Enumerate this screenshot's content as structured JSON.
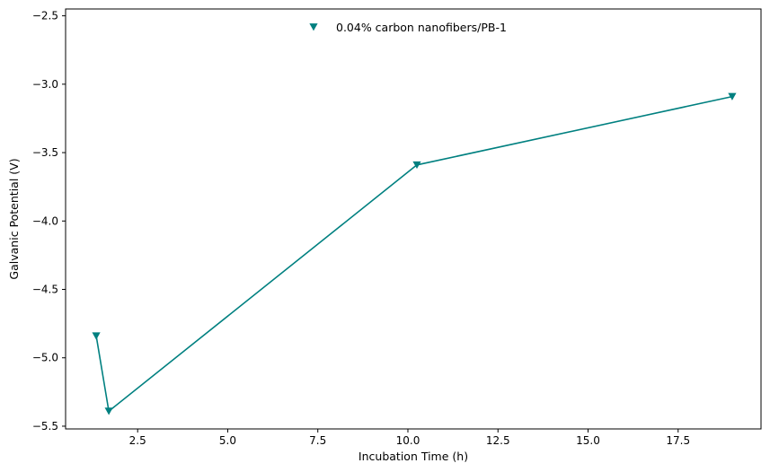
{
  "chart_data": {
    "type": "line",
    "title": "",
    "xlabel": "Incubation Time (h)",
    "ylabel": "Galvanic Potential (V)",
    "xlim": [
      0.5,
      19.8
    ],
    "ylim": [
      -5.52,
      -2.45
    ],
    "xticks": [
      2.5,
      5.0,
      7.5,
      10.0,
      12.5,
      15.0,
      17.5
    ],
    "xtick_labels": [
      "2.5",
      "5.0",
      "7.5",
      "10.0",
      "12.5",
      "15.0",
      "17.5"
    ],
    "yticks": [
      -5.5,
      -5.0,
      -4.5,
      -4.0,
      -3.5,
      -3.0,
      -2.5
    ],
    "ytick_labels": [
      "−5.5",
      "−5.0",
      "−4.5",
      "−4.0",
      "−3.5",
      "−3.0",
      "−2.5"
    ],
    "grid": false,
    "legend_position": "top-center",
    "series": [
      {
        "name": "0.04% carbon nanofibers/PB-1",
        "color": "#008080",
        "marker": "triangle-down",
        "x": [
          1.35,
          1.7,
          10.25,
          19.0
        ],
        "y": [
          -4.84,
          -5.39,
          -3.59,
          -3.09
        ]
      }
    ]
  }
}
